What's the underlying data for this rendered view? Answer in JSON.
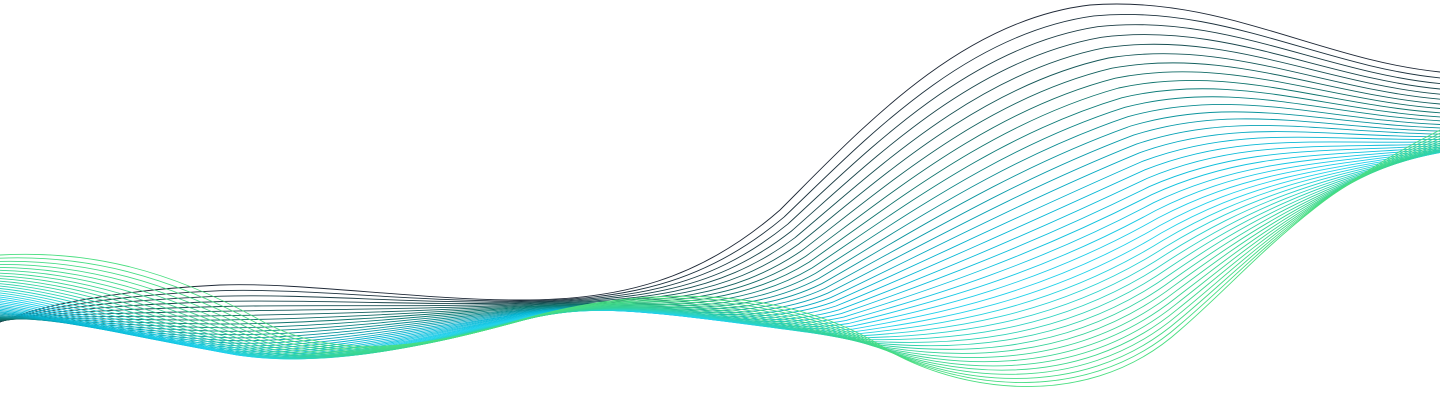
{
  "graphic": {
    "name": "line-wave-decoration",
    "background": "#ffffff",
    "line_count": 42,
    "gradient_colors": [
      "#1f2937",
      "#0f766e",
      "#06b6d4",
      "#22d3ee",
      "#34d399",
      "#4ade80"
    ]
  }
}
